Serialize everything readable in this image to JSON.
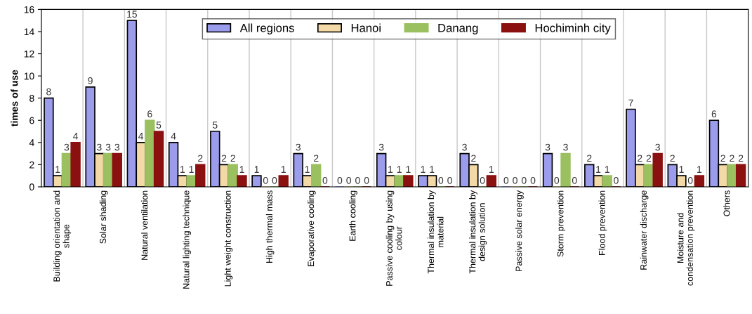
{
  "chart_data": {
    "type": "bar",
    "ylabel": "times of use",
    "categories": [
      "Building orientation and\nshape",
      "Solar shading",
      "Natural ventilation",
      "Natural lighting technique",
      "Light weight construction",
      "High thermal mass",
      "Evaporative cooling",
      "Earth cooling",
      "Passive cooling by using\ncolour",
      "Thermal insulation by\nmaterial",
      "Thermal insulation by\ndesign solution",
      "Passive solar energy",
      "Storm prevention",
      "Flood prevention",
      "Rainwater discharge",
      "Moisture and\ncondensation prevention",
      "Others"
    ],
    "series": [
      {
        "name": "All regions",
        "color": "#9c9cec",
        "values": [
          8,
          9,
          15,
          4,
          5,
          1,
          3,
          0,
          3,
          1,
          3,
          0,
          3,
          2,
          7,
          2,
          6
        ]
      },
      {
        "name": "Hanoi",
        "color": "#f3d9a6",
        "values": [
          1,
          3,
          4,
          1,
          2,
          0,
          1,
          0,
          1,
          1,
          2,
          0,
          0,
          1,
          2,
          1,
          2
        ]
      },
      {
        "name": "Danang",
        "color": "#9bc060",
        "values": [
          3,
          3,
          6,
          1,
          2,
          0,
          2,
          0,
          1,
          0,
          0,
          0,
          3,
          1,
          2,
          0,
          2
        ]
      },
      {
        "name": "Hochiminh city",
        "color": "#8b1010",
        "values": [
          4,
          3,
          5,
          2,
          1,
          1,
          0,
          0,
          1,
          0,
          1,
          0,
          0,
          0,
          3,
          1,
          2
        ]
      }
    ],
    "ylim": [
      0,
      16
    ],
    "yticks": [
      0,
      2,
      4,
      6,
      8,
      10,
      12,
      14,
      16
    ],
    "grid": "x",
    "legend": "top",
    "data_labels": true
  }
}
